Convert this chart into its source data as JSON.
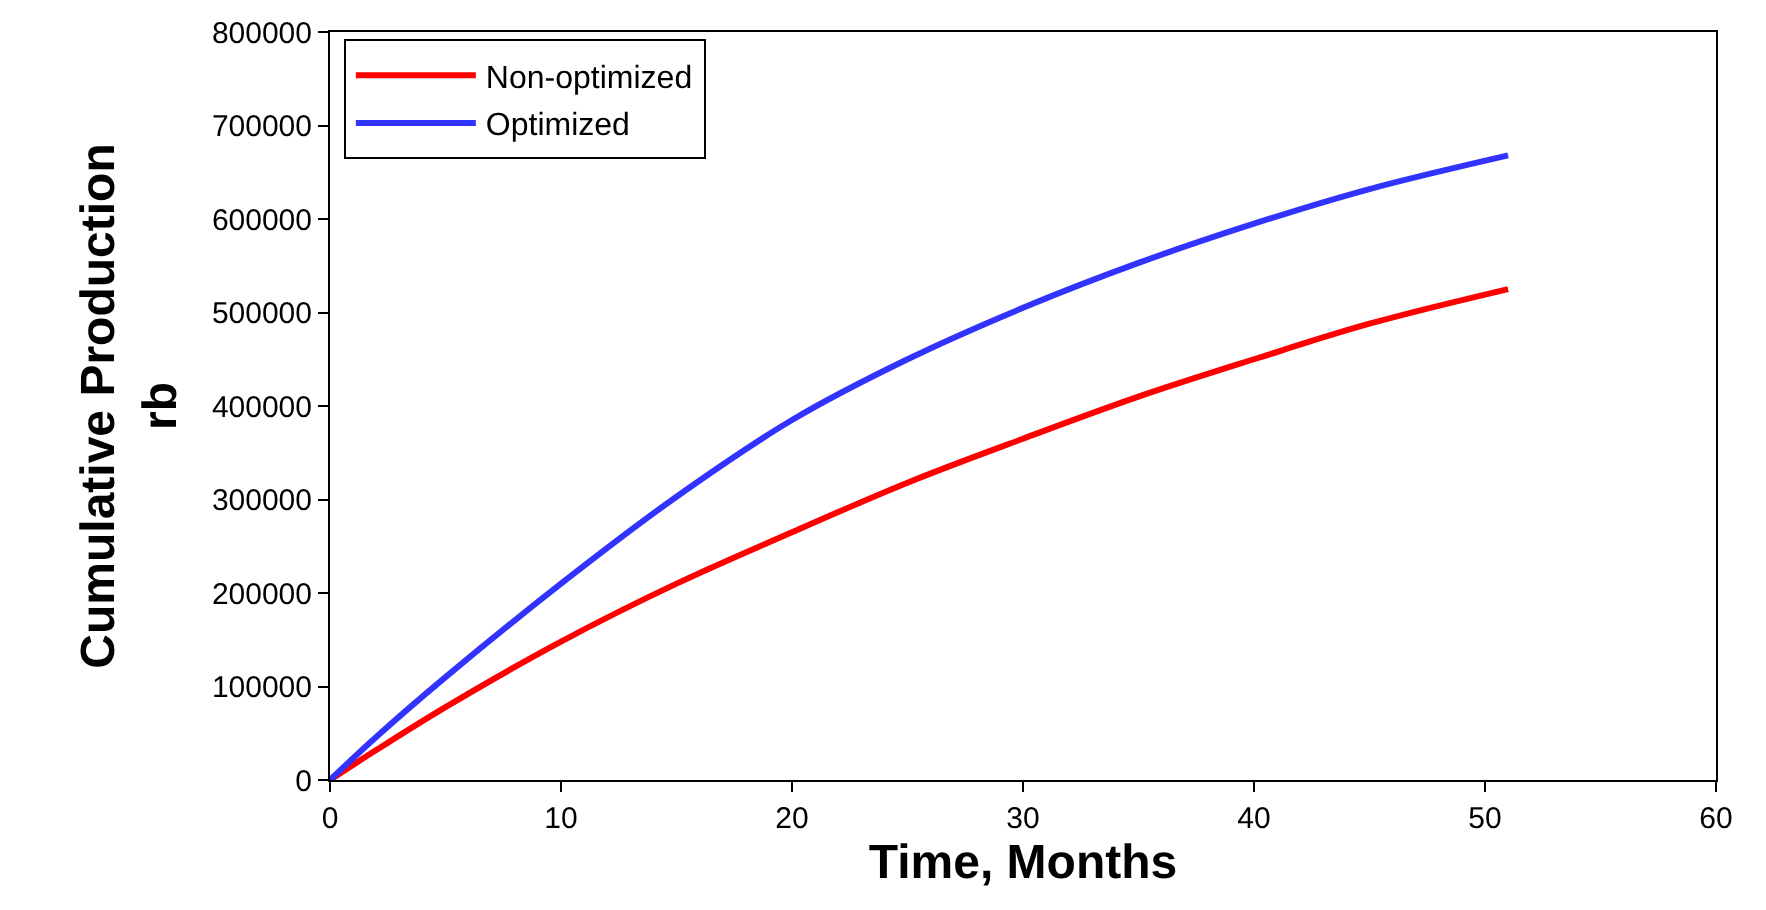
{
  "chart_data": {
    "type": "line",
    "xlabel": "Time, Months",
    "ylabel": "Cumulative Production\nrb",
    "x": [
      0,
      2,
      5,
      10,
      15,
      20,
      25,
      30,
      35,
      40,
      45,
      51
    ],
    "series": [
      {
        "name": "Non-optimized",
        "color": "#ff0000",
        "values": [
          0,
          32000,
          78000,
          148000,
          210000,
          265000,
          318000,
          365000,
          410000,
          450000,
          488000,
          525000
        ]
      },
      {
        "name": "Optimized",
        "color": "#3333ff",
        "values": [
          0,
          46000,
          110000,
          210000,
          303000,
          385000,
          450000,
          505000,
          553000,
          595000,
          632000,
          668000
        ]
      }
    ],
    "xlim": [
      0,
      60
    ],
    "xticks": [
      0,
      10,
      20,
      30,
      40,
      50,
      60
    ],
    "ylim": [
      0,
      800000
    ],
    "yticks": [
      0,
      100000,
      200000,
      300000,
      400000,
      500000,
      600000,
      700000,
      800000
    ],
    "grid": false,
    "legend": "top left",
    "marker": "none",
    "line_style": "solid"
  }
}
